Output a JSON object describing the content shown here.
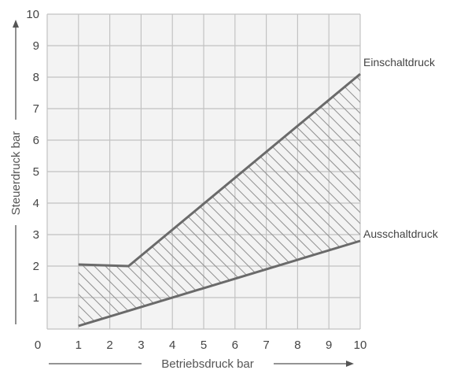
{
  "chart_data": {
    "type": "line",
    "title": "",
    "xlabel": "Betriebsdruck bar",
    "ylabel": "Steuerdruck bar",
    "xlim": [
      0,
      10
    ],
    "ylim": [
      0,
      10
    ],
    "xticks": [
      "0",
      "1",
      "2",
      "3",
      "4",
      "5",
      "6",
      "7",
      "8",
      "9",
      "10"
    ],
    "yticks": [
      "1",
      "2",
      "3",
      "4",
      "5",
      "6",
      "7",
      "8",
      "9",
      "10"
    ],
    "grid": true,
    "hatched_region": "between Einschaltdruck and Ausschaltdruck",
    "series": [
      {
        "name": "Einschaltdruck",
        "points": [
          [
            1,
            2.05
          ],
          [
            2.6,
            2.0
          ],
          [
            10,
            8.1
          ]
        ]
      },
      {
        "name": "Ausschaltdruck",
        "points": [
          [
            1,
            0.1
          ],
          [
            10,
            2.8
          ]
        ]
      }
    ]
  },
  "colors": {
    "grid": "#c2c2c2",
    "lines": "#6a6a6a",
    "hatch": "#909090",
    "text": "#444444"
  }
}
